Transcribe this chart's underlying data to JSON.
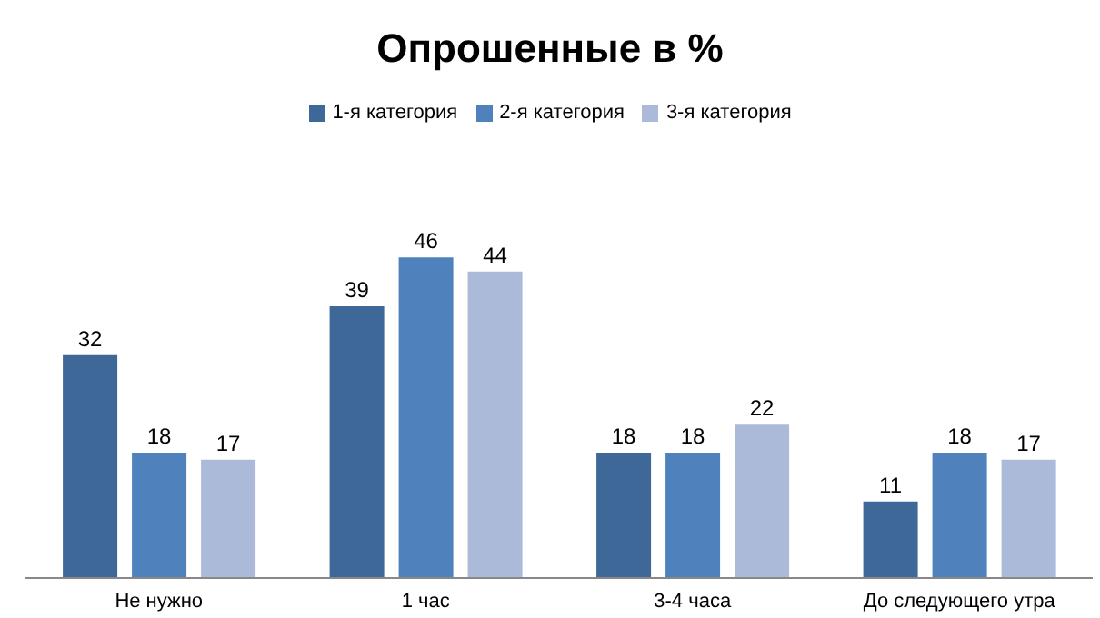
{
  "chart_data": {
    "type": "bar",
    "title": "Опрошенные в %",
    "categories": [
      "Не нужно",
      "1 час",
      "3-4 часа",
      "До следующего утра"
    ],
    "series": [
      {
        "name": "1-я категория",
        "color": "#3e6898",
        "values": [
          32,
          39,
          18,
          11
        ]
      },
      {
        "name": "2-я категория",
        "color": "#4f81bd",
        "values": [
          18,
          46,
          18,
          18
        ]
      },
      {
        "name": "3-я категория",
        "color": "#aabad8",
        "values": [
          17,
          44,
          22,
          17
        ]
      }
    ],
    "data_labels": true,
    "legend": "top",
    "grid": false
  }
}
